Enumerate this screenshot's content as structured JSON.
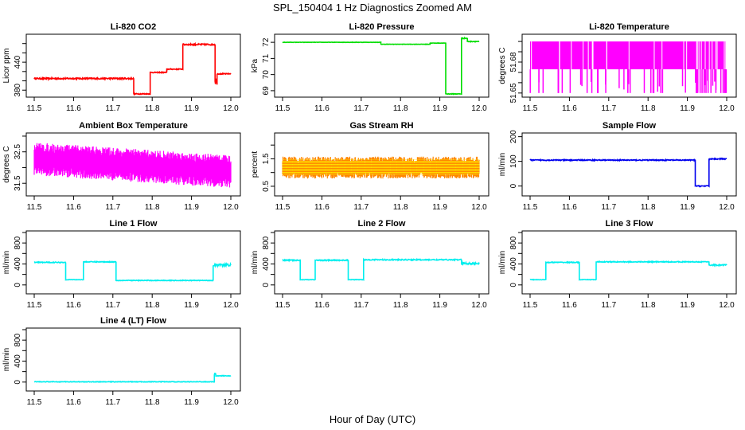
{
  "chart_data": {
    "type": "line",
    "title": "SPL_150404 1 Hz Diagnostics Zoomed AM",
    "xlabel": "Hour of Day (UTC)",
    "xlim": [
      11.5,
      12.0
    ],
    "xticks": [
      "11.5",
      "11.6",
      "11.7",
      "11.8",
      "11.9",
      "12.0"
    ],
    "grid": false,
    "panels": [
      {
        "title": "Li-820 CO2",
        "ylabel": "Licor ppm",
        "color": "#ff0000",
        "ylim": [
          365,
          500
        ],
        "yticks": [
          380,
          400,
          420,
          440,
          460,
          480
        ],
        "yticklabels": {
          "380": "380",
          "440": "440"
        },
        "segments": [
          [
            11.5,
            11.753,
            405,
            1.5
          ],
          [
            11.753,
            11.795,
            372,
            1
          ],
          [
            11.795,
            11.837,
            418,
            1
          ],
          [
            11.837,
            11.878,
            425,
            1
          ],
          [
            11.878,
            11.96,
            478,
            1.5
          ],
          [
            11.96,
            11.965,
            400,
            8
          ],
          [
            11.965,
            12.0,
            415,
            1
          ]
        ]
      },
      {
        "title": "Li-820 Pressure",
        "ylabel": "kPa",
        "color": "#00dd00",
        "ylim": [
          68.6,
          72.5
        ],
        "yticks": [
          69,
          70,
          71,
          72
        ],
        "yticklabels": {
          "69": "69",
          "70": "70",
          "71": "71",
          "72": "72"
        },
        "segments": [
          [
            11.5,
            11.75,
            72.0,
            0.01
          ],
          [
            11.75,
            11.875,
            71.88,
            0.01
          ],
          [
            11.875,
            11.915,
            71.95,
            0.01
          ],
          [
            11.915,
            11.955,
            68.8,
            0.02
          ],
          [
            11.955,
            11.97,
            72.25,
            0.03
          ],
          [
            11.97,
            12.0,
            72.05,
            0.02
          ]
        ]
      },
      {
        "title": "Li-820 Temperature",
        "ylabel": "degrees C",
        "color": "#ff00ff",
        "ylim": [
          51.646,
          51.707
        ],
        "yticks": [
          51.65,
          51.66,
          51.67,
          51.68,
          51.69,
          51.7
        ],
        "yticklabels": {
          "51.65": "51.65",
          "51.68": "51.68"
        },
        "binary": [
          51.673,
          51.7,
          51.65
        ]
      },
      {
        "title": "Ambient Box Temperature",
        "ylabel": "degrees C",
        "color": "#ff00ff",
        "ylim": [
          31.1,
          33.1
        ],
        "yticks": [
          31.5,
          32.0,
          32.5,
          33.0
        ],
        "yticklabels": {
          "31.5": "31.5",
          "32.5": "32.5"
        },
        "noise": [
          [
            11.5,
            32.3
          ],
          [
            12.0,
            31.9
          ]
        ],
        "amp": 0.5
      },
      {
        "title": "Gas Stream RH",
        "ylabel": "percent",
        "color": "#ff8800",
        "ylim": [
          0.15,
          2.44
        ],
        "yticks": [
          0.5,
          1.0,
          1.5,
          2.0
        ],
        "yticklabels": {
          "0.5": "0.5",
          "1.5": "1.5"
        },
        "noise": [
          [
            11.5,
            1.2
          ],
          [
            12.0,
            1.2
          ]
        ],
        "amp": 0.38
      },
      {
        "title": "Sample Flow",
        "ylabel": "ml/min",
        "color": "#0000ee",
        "ylim": [
          -40,
          215
        ],
        "yticks": [
          0,
          100,
          200
        ],
        "yticklabels": {
          "0": "0",
          "100": "100",
          "200": "200"
        },
        "segments": [
          [
            11.5,
            11.92,
            105,
            2
          ],
          [
            11.92,
            11.955,
            0,
            2
          ],
          [
            11.955,
            12.0,
            110,
            2
          ]
        ]
      },
      {
        "title": "Line 1 Flow",
        "ylabel": "ml/min",
        "color": "#00eeee",
        "ylim": [
          -170,
          1030
        ],
        "yticks": [
          0,
          200,
          400,
          600,
          800,
          1000
        ],
        "yticklabels": {
          "0": "0",
          "400": "400",
          "800": "800"
        },
        "segments": [
          [
            11.5,
            11.58,
            430,
            8
          ],
          [
            11.58,
            11.625,
            100,
            4
          ],
          [
            11.625,
            11.708,
            440,
            8
          ],
          [
            11.708,
            11.955,
            85,
            6
          ],
          [
            11.955,
            12.0,
            380,
            20
          ]
        ]
      },
      {
        "title": "Line 2 Flow",
        "ylabel": "ml/min",
        "color": "#00eeee",
        "ylim": [
          -170,
          1030
        ],
        "yticks": [
          0,
          200,
          400,
          600,
          800,
          1000
        ],
        "yticklabels": {
          "0": "0",
          "400": "400",
          "800": "800"
        },
        "segments": [
          [
            11.5,
            11.545,
            470,
            10
          ],
          [
            11.545,
            11.583,
            100,
            4
          ],
          [
            11.583,
            11.667,
            470,
            10
          ],
          [
            11.667,
            11.706,
            100,
            4
          ],
          [
            11.706,
            11.955,
            480,
            10
          ],
          [
            11.955,
            12.0,
            410,
            20
          ]
        ]
      },
      {
        "title": "Line 3 Flow",
        "ylabel": "ml/min",
        "color": "#00eeee",
        "ylim": [
          -170,
          1030
        ],
        "yticks": [
          0,
          200,
          400,
          600,
          800,
          1000
        ],
        "yticklabels": {
          "0": "0",
          "400": "400",
          "800": "800"
        },
        "segments": [
          [
            11.5,
            11.54,
            100,
            4
          ],
          [
            11.54,
            11.625,
            430,
            8
          ],
          [
            11.625,
            11.668,
            100,
            4
          ],
          [
            11.668,
            11.955,
            440,
            8
          ],
          [
            11.955,
            12.0,
            380,
            15
          ]
        ]
      },
      {
        "title": "Line 4 (LT) Flow",
        "ylabel": "ml/min",
        "color": "#00eeee",
        "ylim": [
          -170,
          1030
        ],
        "yticks": [
          0,
          200,
          400,
          600,
          800,
          1000
        ],
        "yticklabels": {
          "0": "0",
          "400": "400",
          "800": "800"
        },
        "segments": [
          [
            11.5,
            11.958,
            5,
            5
          ],
          [
            11.958,
            11.962,
            150,
            20
          ],
          [
            11.962,
            12.0,
            120,
            6
          ]
        ]
      }
    ]
  }
}
